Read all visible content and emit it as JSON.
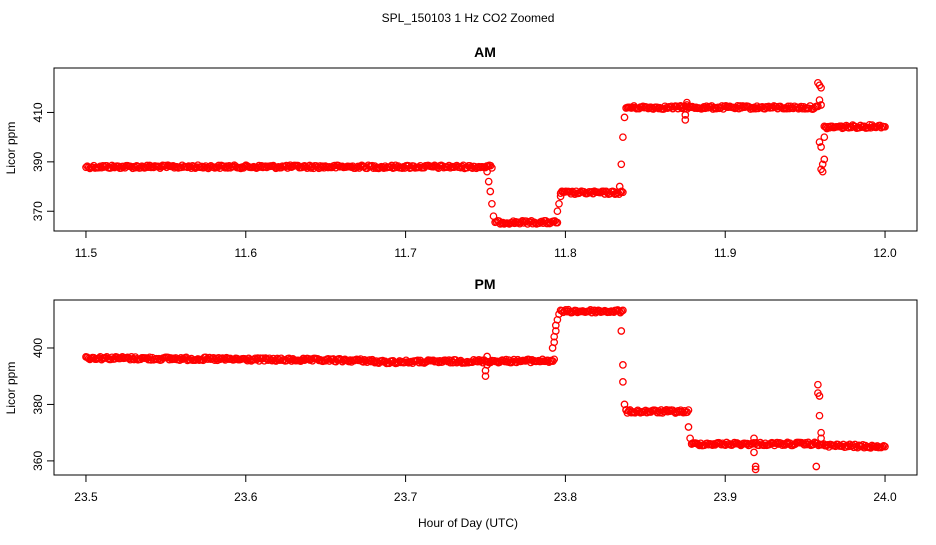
{
  "figure": {
    "title": "SPL_150103  1 Hz CO2 Zoomed",
    "xlabel": "Hour of Day (UTC)"
  },
  "chart_data": [
    {
      "type": "scatter",
      "title": "AM",
      "ylabel": "Licor ppm",
      "xlim": [
        11.48,
        12.02
      ],
      "ylim": [
        362,
        428
      ],
      "xticks": [
        11.5,
        11.6,
        11.7,
        11.8,
        11.9,
        12.0
      ],
      "xtick_labels": [
        "11.5",
        "11.6",
        "11.7",
        "11.8",
        "11.9",
        "12.0"
      ],
      "yticks": [
        370,
        390,
        410
      ],
      "ytick_labels": [
        "370",
        "390",
        "410"
      ],
      "grid": false,
      "color": "#ff0000",
      "series": [
        {
          "segments": [
            {
              "x": [
                11.5,
                11.754
              ],
              "y": [
                388,
                388
              ]
            },
            {
              "x": [
                11.756,
                11.795
              ],
              "y": [
                365.5,
                365.5
              ]
            },
            {
              "x": [
                11.797,
                11.836
              ],
              "y": [
                377.5,
                377.5
              ]
            },
            {
              "x": [
                11.838,
                11.958
              ],
              "y": [
                412,
                412
              ]
            },
            {
              "x": [
                11.962,
                12.0
              ],
              "y": [
                404,
                404.5
              ]
            }
          ],
          "points": [
            [
              11.751,
              386
            ],
            [
              11.752,
              382
            ],
            [
              11.753,
              378
            ],
            [
              11.754,
              373
            ],
            [
              11.755,
              368
            ],
            [
              11.795,
              370
            ],
            [
              11.796,
              373
            ],
            [
              11.797,
              376
            ],
            [
              11.798,
              378
            ],
            [
              11.834,
              380
            ],
            [
              11.835,
              389
            ],
            [
              11.836,
              400
            ],
            [
              11.837,
              408
            ],
            [
              11.875,
              407
            ],
            [
              11.875,
              409
            ],
            [
              11.876,
              414
            ],
            [
              11.876,
              413
            ],
            [
              11.958,
              422
            ],
            [
              11.959,
              421
            ],
            [
              11.96,
              420
            ],
            [
              11.959,
              415
            ],
            [
              11.96,
              413
            ],
            [
              11.959,
              398
            ],
            [
              11.96,
              396
            ],
            [
              11.961,
              389
            ],
            [
              11.96,
              387
            ],
            [
              11.961,
              386
            ],
            [
              11.962,
              391
            ],
            [
              11.962,
              400
            ],
            [
              11.963,
              404
            ]
          ]
        }
      ]
    },
    {
      "type": "scatter",
      "title": "PM",
      "ylabel": "Licor ppm",
      "xlim": [
        23.48,
        24.02
      ],
      "ylim": [
        355,
        417
      ],
      "xticks": [
        23.5,
        23.6,
        23.7,
        23.8,
        23.9,
        24.0
      ],
      "xtick_labels": [
        "23.5",
        "23.6",
        "23.7",
        "23.8",
        "23.9",
        "24.0"
      ],
      "yticks": [
        360,
        380,
        400
      ],
      "ytick_labels": [
        "360",
        "380",
        "400"
      ],
      "grid": false,
      "color": "#ff0000",
      "series": [
        {
          "segments": [
            {
              "x": [
                23.5,
                23.68
              ],
              "y": [
                396.5,
                395.5
              ]
            },
            {
              "x": [
                23.68,
                23.793
              ],
              "y": [
                395,
                395.5
              ]
            },
            {
              "x": [
                23.797,
                23.836
              ],
              "y": [
                413,
                413
              ]
            },
            {
              "x": [
                23.838,
                23.877
              ],
              "y": [
                377.5,
                377.5
              ]
            },
            {
              "x": [
                23.879,
                23.96
              ],
              "y": [
                366,
                366
              ]
            },
            {
              "x": [
                23.96,
                24.0
              ],
              "y": [
                365.5,
                365
              ]
            }
          ],
          "points": [
            [
              23.75,
              390
            ],
            [
              23.75,
              392
            ],
            [
              23.751,
              394
            ],
            [
              23.751,
              397
            ],
            [
              23.792,
              400
            ],
            [
              23.793,
              402
            ],
            [
              23.793,
              404
            ],
            [
              23.794,
              406
            ],
            [
              23.794,
              408
            ],
            [
              23.795,
              410
            ],
            [
              23.796,
              412
            ],
            [
              23.835,
              406
            ],
            [
              23.836,
              394
            ],
            [
              23.836,
              388
            ],
            [
              23.837,
              380
            ],
            [
              23.838,
              378
            ],
            [
              23.877,
              372
            ],
            [
              23.878,
              368
            ],
            [
              23.879,
              366
            ],
            [
              23.918,
              368
            ],
            [
              23.918,
              363
            ],
            [
              23.919,
              358
            ],
            [
              23.919,
              357
            ],
            [
              23.957,
              358
            ],
            [
              23.958,
              387
            ],
            [
              23.958,
              384
            ],
            [
              23.959,
              383
            ],
            [
              23.959,
              376
            ],
            [
              23.96,
              370
            ],
            [
              23.96,
              368
            ]
          ]
        }
      ]
    }
  ]
}
